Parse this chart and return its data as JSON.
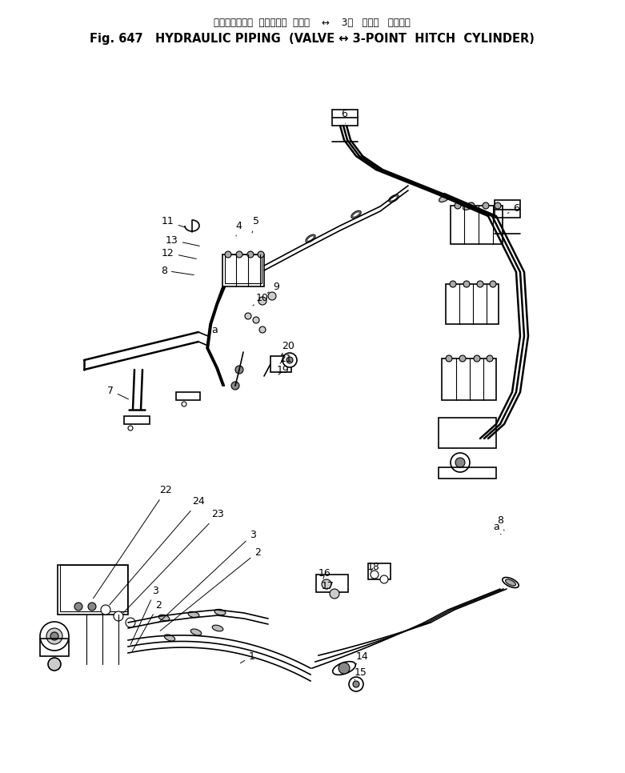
{
  "title_jp": "ハイドロリック  パイピング  バルブ    ↔    3点   ヒッチ   シリンダ",
  "title_en": "Fig. 647   HYDRAULIC PIPING  (VALVE ↔ 3-POINT  HITCH  CYLINDER)",
  "bg_color": "#ffffff",
  "line_color": "#000000",
  "label_color": "#000000"
}
